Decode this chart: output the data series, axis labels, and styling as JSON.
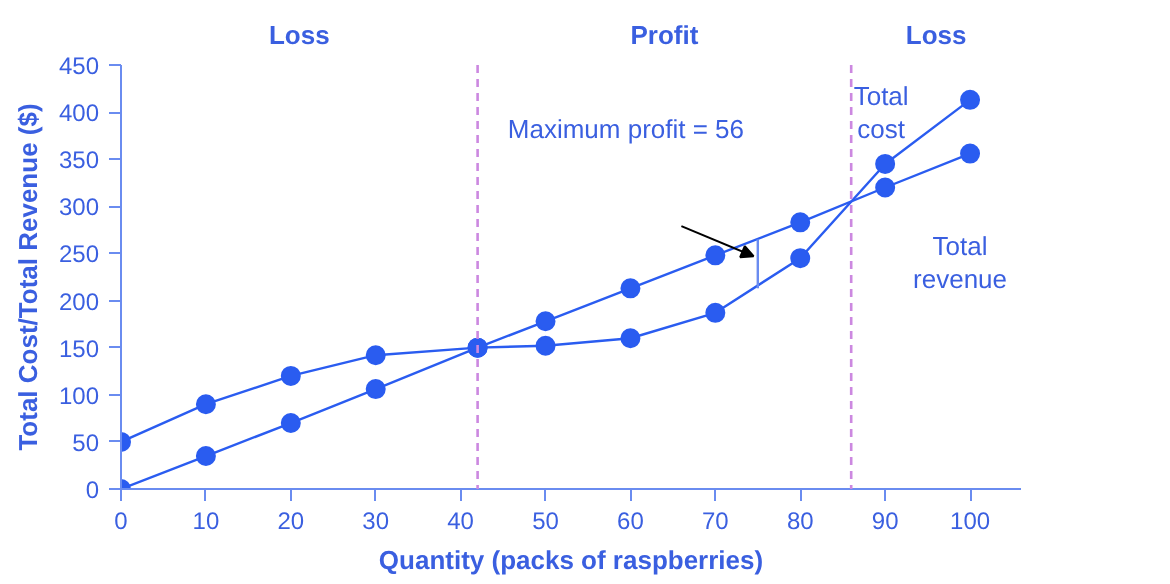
{
  "chart_data": {
    "type": "line",
    "xlabel": "Quantity (packs of raspberries)",
    "ylabel": "Total Cost/Total Revenue ($)",
    "xlim": [
      0,
      106
    ],
    "xticks": [
      0,
      10,
      20,
      30,
      40,
      50,
      60,
      70,
      80,
      90,
      100
    ],
    "ylim": [
      0,
      450
    ],
    "yticks": [
      0,
      50,
      100,
      150,
      200,
      250,
      300,
      350,
      400,
      450
    ],
    "grid": false,
    "marker": "circle",
    "line_style": "solid",
    "series": [
      {
        "name": "Total cost",
        "color": "#2a5cf0",
        "x": [
          0,
          10,
          20,
          30,
          42,
          50,
          60,
          70,
          80,
          90,
          100
        ],
        "values": [
          50,
          90,
          120,
          142,
          150,
          152,
          160,
          187,
          245,
          345,
          413
        ]
      },
      {
        "name": "Total revenue",
        "color": "#2a5cf0",
        "x": [
          0,
          10,
          20,
          30,
          42,
          50,
          60,
          70,
          80,
          90,
          100
        ],
        "values": [
          0,
          35,
          70,
          106,
          150,
          178,
          213,
          248,
          283,
          320,
          356
        ]
      },
      {
        "type": "line",
        "color": "#6a8cf0",
        "marker": "none",
        "x": [
          75,
          75
        ],
        "values": [
          213,
          265
        ]
      }
    ],
    "ref_lines": [
      {
        "axis": "x",
        "value": 42,
        "color": "#cc88e0",
        "line_style": "dashed"
      },
      {
        "axis": "x",
        "value": 86,
        "color": "#cc88e0",
        "line_style": "dashed"
      }
    ],
    "annotations": [
      "Loss",
      "Profit",
      "Loss",
      "Maximum profit = 56"
    ]
  }
}
